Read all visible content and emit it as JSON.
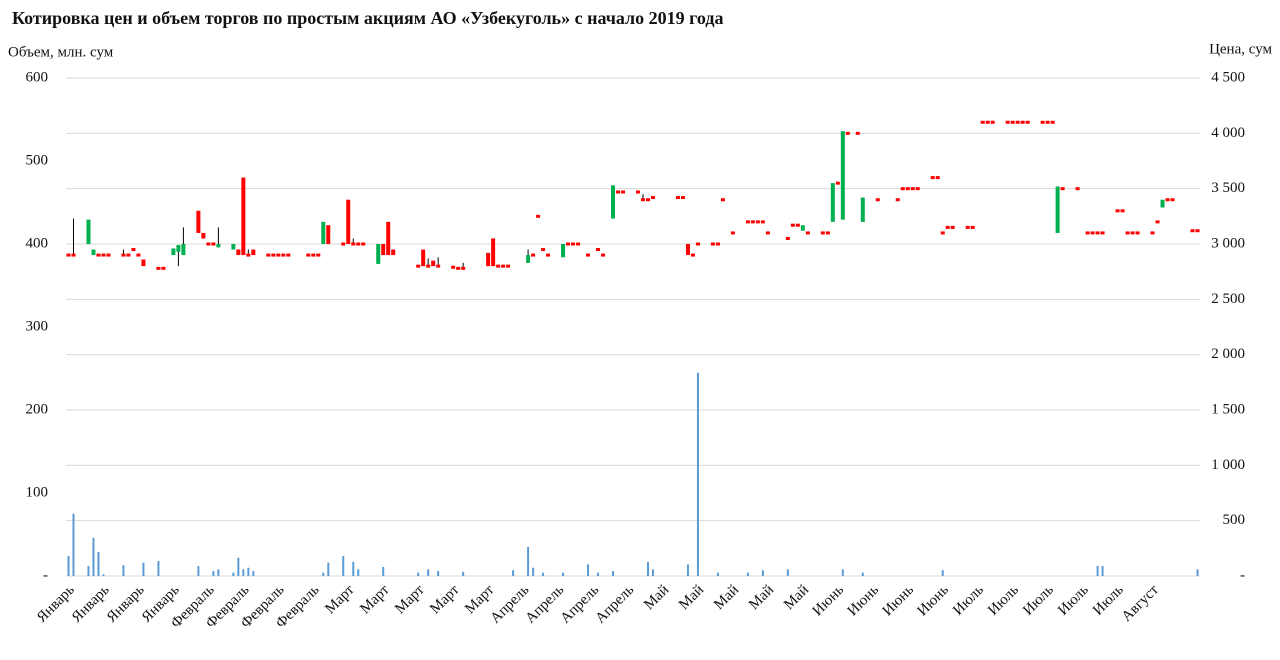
{
  "chart_data": {
    "type": "candlestick",
    "title": "Котировка цен и объем торгов по простым акциям АО «Узбекуголь» с начало 2019 года",
    "y_label": "Объем, млн. сум",
    "y2_label": "Цена, сум",
    "ylim": [
      0,
      600
    ],
    "yticks": [
      {
        "value": 0,
        "label": "-"
      },
      100,
      200,
      300,
      400,
      500,
      600
    ],
    "y2lim": [
      0,
      4500
    ],
    "y2ticks": [
      {
        "value": 0,
        "label": "-"
      },
      500,
      {
        "value": 1000,
        "label": "1 000"
      },
      {
        "value": 1500,
        "label": "1 500"
      },
      {
        "value": 2000,
        "label": "2 000"
      },
      {
        "value": 2500,
        "label": "2 500"
      },
      {
        "value": 3000,
        "label": "3 000"
      },
      {
        "value": 3500,
        "label": "3 500"
      },
      {
        "value": 4000,
        "label": "4 000"
      },
      {
        "value": 4500,
        "label": "4 500"
      }
    ],
    "grid": true,
    "volume_color": "#5b9bd5",
    "up_color": "#00b050",
    "down_color": "#ff0000",
    "wick_color": "#000000",
    "categories": [
      "Январь",
      null,
      null,
      null,
      null,
      null,
      null,
      "Январь",
      null,
      null,
      null,
      null,
      null,
      null,
      "Январь",
      null,
      null,
      null,
      null,
      null,
      null,
      "Январь",
      null,
      null,
      null,
      null,
      null,
      null,
      "Февраль",
      null,
      null,
      null,
      null,
      null,
      null,
      "Февраль",
      null,
      null,
      null,
      null,
      null,
      null,
      "Февраль",
      null,
      null,
      null,
      null,
      null,
      null,
      "Февраль",
      null,
      null,
      null,
      null,
      null,
      null,
      "Март",
      null,
      null,
      null,
      null,
      null,
      null,
      "Март",
      null,
      null,
      null,
      null,
      null,
      null,
      "Март",
      null,
      null,
      null,
      null,
      null,
      null,
      "Март",
      null,
      null,
      null,
      null,
      null,
      null,
      "Март",
      null,
      null,
      null,
      null,
      null,
      null,
      "Апрель",
      null,
      null,
      null,
      null,
      null,
      null,
      "Апрель",
      null,
      null,
      null,
      null,
      null,
      null,
      "Апрель",
      null,
      null,
      null,
      null,
      null,
      null,
      "Апрель",
      null,
      null,
      null,
      null,
      null,
      null,
      "Май",
      null,
      null,
      null,
      null,
      null,
      null,
      "Май",
      null,
      null,
      null,
      null,
      null,
      null,
      "Май",
      null,
      null,
      null,
      null,
      null,
      null,
      "Май",
      null,
      null,
      null,
      null,
      null,
      null,
      "Май",
      null,
      null,
      null,
      null,
      null,
      null,
      "Июнь",
      null,
      null,
      null,
      null,
      null,
      null,
      "Июнь",
      null,
      null,
      null,
      null,
      null,
      null,
      "Июнь",
      null,
      null,
      null,
      null,
      null,
      null,
      "Июнь",
      null,
      null,
      null,
      null,
      null,
      null,
      "Июль",
      null,
      null,
      null,
      null,
      null,
      null,
      "Июль",
      null,
      null,
      null,
      null,
      null,
      null,
      "Июль",
      null,
      null,
      null,
      null,
      null,
      null,
      "Июль",
      null,
      null,
      null,
      null,
      null,
      null,
      "Июль",
      null,
      null,
      null,
      null,
      null,
      null,
      "Август",
      null,
      null,
      null,
      null,
      null,
      null,
      null,
      null,
      null
    ],
    "volume": [
      24,
      75,
      null,
      null,
      12,
      46,
      29,
      2,
      null,
      null,
      null,
      13,
      null,
      null,
      null,
      16,
      null,
      null,
      18,
      null,
      null,
      null,
      null,
      null,
      null,
      null,
      12,
      null,
      null,
      6,
      8,
      null,
      null,
      4,
      22,
      8,
      10,
      6,
      null,
      null,
      null,
      null,
      null,
      null,
      null,
      null,
      null,
      null,
      null,
      null,
      null,
      4,
      16,
      null,
      null,
      24,
      null,
      17,
      8,
      null,
      null,
      null,
      null,
      11,
      null,
      null,
      null,
      null,
      null,
      null,
      4,
      null,
      8,
      null,
      6,
      null,
      null,
      null,
      null,
      5,
      null,
      null,
      null,
      null,
      null,
      null,
      null,
      null,
      null,
      7,
      null,
      null,
      35,
      10,
      null,
      4,
      null,
      null,
      null,
      4,
      null,
      null,
      null,
      null,
      14,
      null,
      4,
      null,
      null,
      6,
      null,
      null,
      null,
      null,
      null,
      null,
      17,
      8,
      null,
      null,
      null,
      null,
      null,
      null,
      14,
      null,
      245,
      null,
      null,
      null,
      4,
      null,
      null,
      null,
      null,
      null,
      4,
      null,
      null,
      7,
      null,
      null,
      null,
      null,
      8,
      null,
      null,
      null,
      null,
      null,
      null,
      null,
      null,
      null,
      null,
      8,
      null,
      null,
      null,
      4,
      null,
      null,
      null,
      null,
      null,
      null,
      null,
      null,
      null,
      null,
      null,
      null,
      null,
      null,
      null,
      7,
      null,
      null,
      null,
      null,
      null,
      null,
      null,
      null,
      null,
      null,
      null,
      null,
      null,
      null,
      null,
      null,
      null,
      null,
      null,
      null,
      null,
      null,
      null,
      null,
      null,
      null,
      null,
      null,
      null,
      null,
      12,
      12,
      null,
      null,
      null,
      null,
      null,
      null,
      null,
      null,
      null,
      null,
      null,
      null,
      null,
      null,
      null,
      null,
      null,
      null,
      8
    ],
    "open": [
      2900,
      2900,
      null,
      null,
      3000,
      2900,
      2900,
      2900,
      2900,
      null,
      null,
      2900,
      2900,
      2950,
      2900,
      2860,
      null,
      null,
      2780,
      2780,
      null,
      2900,
      2930,
      2900,
      null,
      null,
      3300,
      3100,
      3000,
      3000,
      2970,
      null,
      null,
      2950,
      2950,
      3600,
      2900,
      2950,
      null,
      null,
      2900,
      2900,
      2900,
      2900,
      2900,
      null,
      null,
      null,
      2900,
      2900,
      2900,
      3000,
      3170,
      null,
      null,
      3000,
      3400,
      3000,
      3000,
      3000,
      null,
      null,
      2820,
      3000,
      3200,
      2950,
      null,
      null,
      null,
      null,
      2800,
      2950,
      2800,
      2850,
      2800,
      null,
      null,
      2790,
      2780,
      2780,
      null,
      null,
      null,
      null,
      2920,
      3050,
      2800,
      2800,
      2800,
      null,
      null,
      null,
      2830,
      2900,
      3250,
      2950,
      2900,
      null,
      null,
      2880,
      3000,
      3000,
      3000,
      null,
      2900,
      null,
      2950,
      2900,
      null,
      3230,
      3470,
      3470,
      null,
      null,
      3470,
      3400,
      3400,
      3420,
      null,
      null,
      null,
      null,
      3420,
      3420,
      3000,
      2900,
      3000,
      null,
      null,
      3000,
      3000,
      3400,
      null,
      3100,
      null,
      null,
      3200,
      3200,
      3200,
      3200,
      3100,
      null,
      null,
      null,
      3050,
      3170,
      3170,
      3120,
      3100,
      null,
      null,
      3100,
      3100,
      3200,
      3550,
      3220,
      4000,
      null,
      4000,
      3200,
      null,
      null,
      3400,
      null,
      null,
      null,
      3400,
      3500,
      3500,
      3500,
      3500,
      null,
      null,
      3600,
      3600,
      3100,
      3150,
      3150,
      null,
      null,
      3150,
      3150,
      null,
      4100,
      4100,
      4100,
      null,
      null,
      4100,
      4100,
      4100,
      4100,
      4100,
      null,
      null,
      4100,
      4100,
      4100,
      3100,
      3500,
      null,
      null,
      3500,
      null,
      3100,
      3100,
      3100,
      3100,
      null,
      null,
      3300,
      3300,
      3100,
      3100,
      3100,
      null,
      null,
      3100,
      3200,
      3330,
      3400,
      3400,
      null,
      null,
      null,
      3120,
      3120
    ],
    "close": [
      2900,
      2900,
      null,
      null,
      3220,
      2950,
      2900,
      2900,
      2900,
      null,
      null,
      2900,
      2900,
      2950,
      2900,
      2800,
      null,
      null,
      2780,
      2780,
      null,
      2960,
      2990,
      3000,
      null,
      null,
      3100,
      3050,
      3000,
      3000,
      3000,
      null,
      null,
      3000,
      2900,
      2900,
      2900,
      2900,
      null,
      null,
      2900,
      2900,
      2900,
      2900,
      2900,
      null,
      null,
      null,
      2900,
      2900,
      2900,
      3200,
      3000,
      null,
      null,
      3000,
      3000,
      3000,
      3000,
      3000,
      null,
      null,
      3000,
      2900,
      2900,
      2900,
      null,
      null,
      null,
      null,
      2800,
      2800,
      2800,
      2800,
      2800,
      null,
      null,
      2790,
      2780,
      2780,
      null,
      null,
      null,
      null,
      2800,
      2800,
      2800,
      2800,
      2800,
      null,
      null,
      null,
      2900,
      2900,
      3250,
      2950,
      2900,
      null,
      null,
      3000,
      3000,
      3000,
      3000,
      null,
      2900,
      null,
      2950,
      2900,
      null,
      3530,
      3470,
      3470,
      null,
      null,
      3470,
      3400,
      3400,
      3420,
      null,
      null,
      null,
      null,
      3420,
      3420,
      2900,
      2900,
      3000,
      null,
      null,
      3000,
      3000,
      3400,
      null,
      3100,
      null,
      null,
      3200,
      3200,
      3200,
      3200,
      3100,
      null,
      null,
      null,
      3050,
      3170,
      3170,
      3170,
      3100,
      null,
      null,
      3100,
      3100,
      3550,
      3550,
      4020,
      4000,
      null,
      4000,
      3420,
      null,
      null,
      3400,
      null,
      null,
      null,
      3400,
      3500,
      3500,
      3500,
      3500,
      null,
      null,
      3600,
      3600,
      3100,
      3150,
      3150,
      null,
      null,
      3150,
      3150,
      null,
      4100,
      4100,
      4100,
      null,
      null,
      4100,
      4100,
      4100,
      4100,
      4100,
      null,
      null,
      4100,
      4100,
      4100,
      3520,
      3500,
      null,
      null,
      3500,
      null,
      3100,
      3100,
      3100,
      3100,
      null,
      null,
      3300,
      3300,
      3100,
      3100,
      3100,
      null,
      null,
      3100,
      3200,
      3400,
      3400,
      3400,
      null,
      null,
      null,
      3120,
      3120
    ],
    "high": [
      null,
      3230,
      null,
      null,
      null,
      null,
      null,
      null,
      null,
      null,
      null,
      2950,
      null,
      null,
      null,
      null,
      null,
      null,
      null,
      null,
      null,
      null,
      null,
      3150,
      null,
      null,
      null,
      null,
      null,
      null,
      3150,
      null,
      null,
      null,
      null,
      null,
      2950,
      null,
      null,
      null,
      null,
      null,
      null,
      null,
      null,
      null,
      null,
      null,
      null,
      null,
      null,
      null,
      null,
      null,
      null,
      null,
      null,
      3050,
      null,
      null,
      null,
      null,
      null,
      null,
      null,
      null,
      null,
      null,
      null,
      null,
      null,
      null,
      2870,
      null,
      2880,
      null,
      null,
      null,
      null,
      2830,
      null,
      null,
      null,
      null,
      null,
      null,
      null,
      null,
      null,
      null,
      null,
      null,
      2950,
      null,
      null,
      null,
      null,
      null,
      null,
      null,
      null,
      null,
      null,
      null,
      null,
      null,
      null,
      null,
      null,
      null,
      null,
      null,
      null,
      null,
      null,
      3450,
      null,
      null,
      null,
      null,
      null,
      null,
      null,
      null,
      null,
      null,
      null,
      null,
      null,
      null,
      null,
      null,
      null,
      null,
      null,
      null,
      null,
      null,
      null,
      null,
      null,
      null,
      null,
      null,
      null,
      null,
      null,
      null,
      null,
      null,
      null,
      null,
      null,
      null,
      null,
      null,
      null,
      null,
      null,
      null,
      null,
      null,
      null,
      null,
      null,
      null,
      null,
      null,
      null,
      null,
      null,
      null,
      null,
      null,
      null,
      null,
      null,
      null,
      null,
      null,
      null,
      null,
      null,
      null,
      null,
      null,
      null,
      null,
      null,
      null,
      null,
      null,
      null,
      null,
      null,
      null,
      null,
      null,
      null,
      null,
      null,
      null,
      null,
      null,
      null,
      null,
      null,
      null,
      null,
      null,
      null,
      null,
      null,
      null,
      null,
      null,
      null,
      null,
      null,
      null,
      null,
      null,
      null,
      null,
      null,
      null,
      null
    ],
    "low": [
      null,
      null,
      null,
      null,
      null,
      null,
      null,
      null,
      null,
      null,
      null,
      null,
      null,
      null,
      null,
      null,
      null,
      null,
      null,
      null,
      null,
      null,
      2800,
      null,
      null,
      null,
      null,
      null,
      null,
      null,
      null,
      null,
      null,
      null,
      null,
      null,
      null,
      null,
      null,
      null,
      null,
      null,
      null,
      null,
      null,
      null,
      null,
      null,
      null,
      null,
      null,
      null,
      null,
      null,
      null,
      null,
      null,
      null,
      null,
      null,
      null,
      null,
      null,
      null,
      null,
      null,
      null,
      null,
      null,
      null,
      null,
      null,
      null,
      null,
      null,
      null,
      null,
      null,
      null,
      null,
      null,
      null,
      null,
      null,
      null,
      null,
      null,
      null,
      null,
      null,
      null,
      null,
      null,
      null,
      null,
      null,
      null,
      null,
      null,
      null,
      null,
      null,
      null,
      null,
      null,
      null,
      null,
      null,
      null,
      null,
      null,
      null,
      null,
      null,
      null,
      null,
      null,
      null,
      null,
      null,
      null,
      null,
      null,
      null,
      null,
      null,
      null,
      null,
      null,
      null,
      null,
      null,
      null,
      null,
      null,
      null,
      null,
      null,
      null,
      null,
      null,
      null,
      null,
      null,
      null,
      null,
      null,
      null,
      null,
      null,
      null,
      null,
      null,
      null,
      null,
      null,
      null,
      null,
      null,
      null,
      null,
      null,
      null,
      null,
      null,
      null,
      null,
      null,
      null,
      null,
      null,
      null,
      null,
      null,
      null,
      null,
      null,
      null,
      null,
      null,
      null,
      null,
      null,
      null,
      null,
      null,
      null,
      null,
      null,
      null,
      null,
      null,
      null,
      null,
      null,
      null,
      null,
      null,
      null,
      null,
      null,
      null,
      null,
      null,
      null,
      null,
      null,
      null,
      null,
      null,
      null,
      null,
      null,
      null,
      null,
      null,
      null,
      null,
      null,
      null,
      null,
      null,
      null,
      null,
      null,
      null,
      null
    ]
  }
}
